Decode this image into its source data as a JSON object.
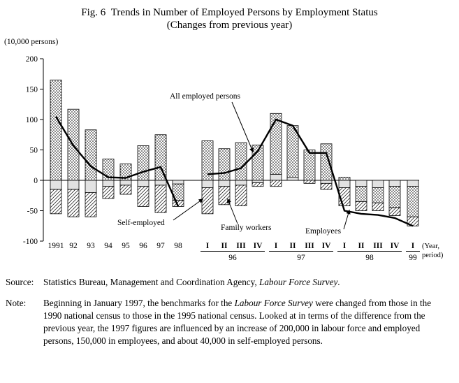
{
  "title": {
    "line1": "Fig. 6  Trends in Number of Employed Persons by Employment Status",
    "line2": "(Changes from previous year)"
  },
  "chart_data": {
    "type": "bar+line",
    "unit_label": "(10,000 persons)",
    "y_axis": {
      "min": -100,
      "max": 200,
      "ticks": [
        200,
        150,
        100,
        50,
        0,
        -50,
        -100
      ]
    },
    "x_axis": {
      "annual_labels": [
        "1991",
        "92",
        "93",
        "94",
        "95",
        "96",
        "97",
        "98"
      ],
      "quarter_groups": [
        {
          "year": "96",
          "quarters": [
            "I",
            "II",
            "III",
            "IV"
          ]
        },
        {
          "year": "97",
          "quarters": [
            "I",
            "II",
            "III",
            "IV"
          ]
        },
        {
          "year": "98",
          "quarters": [
            "I",
            "II",
            "III",
            "IV"
          ]
        },
        {
          "year": "99",
          "quarters": [
            "I"
          ]
        }
      ],
      "axis_note": [
        "(Year,",
        "period)"
      ]
    },
    "categories": [
      "1991",
      "1992",
      "1993",
      "1994",
      "1995",
      "1996",
      "1997",
      "1998",
      "96-I",
      "96-II",
      "96-III",
      "96-IV",
      "97-I",
      "97-II",
      "97-III",
      "97-IV",
      "98-I",
      "98-II",
      "98-III",
      "98-IV",
      "99-I"
    ],
    "series": [
      {
        "name": "Family workers",
        "style": "gray",
        "values": [
          -15,
          -15,
          -20,
          -10,
          -8,
          -10,
          -8,
          -6,
          -12,
          -10,
          -8,
          -4,
          10,
          5,
          0,
          -5,
          -12,
          -10,
          -12,
          -10,
          -10
        ]
      },
      {
        "name": "Employees",
        "style": "dots",
        "values": [
          165,
          117,
          83,
          35,
          27,
          57,
          75,
          -27,
          65,
          52,
          62,
          58,
          100,
          85,
          50,
          60,
          5,
          -25,
          -25,
          -35,
          -50
        ]
      },
      {
        "name": "Self-employed",
        "style": "hatch",
        "values": [
          -40,
          -45,
          -40,
          -20,
          -15,
          -33,
          -45,
          -10,
          -43,
          -30,
          -34,
          -6,
          -10,
          0,
          -5,
          -10,
          -30,
          -15,
          -13,
          -13,
          -15
        ]
      }
    ],
    "line_series": {
      "name": "All employed persons",
      "values": [
        105,
        57,
        23,
        5,
        4,
        14,
        22,
        -43,
        10,
        12,
        20,
        48,
        100,
        90,
        45,
        45,
        -50,
        -55,
        -57,
        -62,
        -75
      ],
      "segments": [
        [
          0,
          7
        ],
        [
          8,
          20
        ]
      ]
    },
    "annotations": {
      "all_employed": "All employed persons",
      "self_employed": "Self-employed",
      "family_workers": "Family workers",
      "employees": "Employees"
    }
  },
  "source": {
    "label": "Source:",
    "segments": [
      {
        "text": "Statistics Bureau, Management and Coordination Agency, "
      },
      {
        "text": "Labour Force Survey",
        "italic": true
      },
      {
        "text": "."
      }
    ]
  },
  "note": {
    "label": "Note:",
    "segments": [
      {
        "text": "Beginning in January 1997, the benchmarks for the "
      },
      {
        "text": "Labour Force Survey",
        "italic": true
      },
      {
        "text": " were changed from those in the 1990 national census to those in the 1995 national census. Looked at in terms of the difference from the previous year, the 1997 figures are influenced by an increase of 200,000 in labour force and employed persons, 150,000 in employees, and about 40,000 in self-employed persons."
      }
    ]
  }
}
